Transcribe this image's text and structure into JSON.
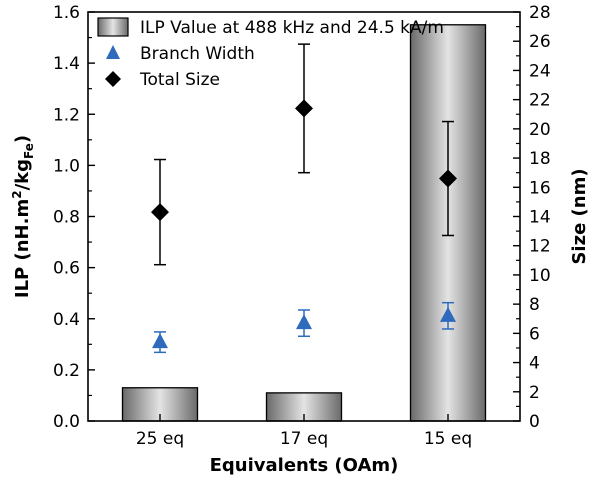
{
  "chart_data": {
    "type": "bar",
    "categories": [
      "25 eq",
      "17 eq",
      "15 eq"
    ],
    "xlabel": "Equivalents (OAm)",
    "ylabel_left": {
      "main": "ILP (nH.m",
      "sup": "2",
      "mid": "/kg",
      "sub": "Fe",
      "end": ")"
    },
    "ylabel_right": "Size (nm)",
    "ylim_left": [
      0,
      1.6
    ],
    "ylim_right": [
      0,
      28
    ],
    "yticks_left": [
      0.0,
      0.2,
      0.4,
      0.6,
      0.8,
      1.0,
      1.2,
      1.4,
      1.6
    ],
    "yticks_right": [
      0,
      2,
      4,
      6,
      8,
      10,
      12,
      14,
      16,
      18,
      20,
      22,
      24,
      26,
      28
    ],
    "legend_position": "top-left",
    "series": [
      {
        "name": "ILP Value at 488 kHz and 24.5 kA/m",
        "kind": "bar",
        "axis": "left",
        "values": [
          0.13,
          0.11,
          1.55
        ],
        "color": "#8c8c8c"
      },
      {
        "name": "Branch Width",
        "kind": "scatter",
        "marker": "triangle",
        "axis": "right",
        "values": [
          5.4,
          6.7,
          7.2
        ],
        "errors": [
          0.7,
          0.9,
          0.9
        ],
        "color": "#2e6bbd"
      },
      {
        "name": "Total Size",
        "kind": "scatter",
        "marker": "diamond",
        "axis": "right",
        "values": [
          14.3,
          21.4,
          16.6
        ],
        "errors": [
          3.6,
          4.4,
          3.9
        ],
        "color": "#000000"
      }
    ]
  }
}
